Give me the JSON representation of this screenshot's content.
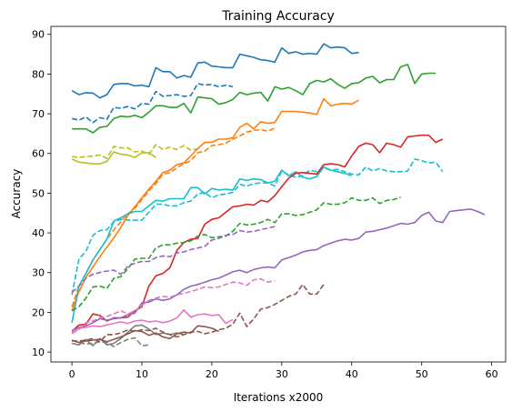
{
  "chart_data": {
    "type": "line",
    "title": "Training Accuracy",
    "xlabel": "Iterations x2000",
    "ylabel": "Accuracy",
    "xlim": [
      -3,
      62
    ],
    "ylim": [
      7.5,
      92
    ],
    "xticks": [
      0,
      10,
      20,
      30,
      40,
      50,
      60
    ],
    "yticks": [
      10,
      20,
      30,
      40,
      50,
      60,
      70,
      80,
      90
    ],
    "legend": "none",
    "series": [
      {
        "name": "blue solid",
        "color": "#1f77b4",
        "dash": "solid",
        "x0": 0,
        "values": [
          75.8,
          74.8,
          75.3,
          75.2,
          74.0,
          74.8,
          77.4,
          77.6,
          77.6,
          77.0,
          77.2,
          76.8,
          81.6,
          80.6,
          80.6,
          79.0,
          79.6,
          79.2,
          82.8,
          83.0,
          82.0,
          81.8,
          81.6,
          81.6,
          85.0,
          84.6,
          84.2,
          83.6,
          83.4,
          83.0,
          86.6,
          85.2,
          85.6,
          85.0,
          85.2,
          85.0,
          87.6,
          86.6,
          86.8,
          86.6,
          85.2,
          85.4
        ]
      },
      {
        "name": "blue dashed",
        "color": "#1f77b4",
        "dash": "dashed",
        "x0": 0,
        "values": [
          68.8,
          68.4,
          69.2,
          67.8,
          69.0,
          68.6,
          71.6,
          71.4,
          71.8,
          71.2,
          72.6,
          72.4,
          75.6,
          74.4,
          74.6,
          74.8,
          74.4,
          74.6,
          77.6,
          77.2,
          77.4,
          76.8,
          77.2,
          76.8
        ]
      },
      {
        "name": "green solid",
        "color": "#2ca02c",
        "dash": "solid",
        "x0": 0,
        "values": [
          66.2,
          66.2,
          66.2,
          65.2,
          66.6,
          66.8,
          68.8,
          69.4,
          69.2,
          69.6,
          69.0,
          70.4,
          72.0,
          72.0,
          71.6,
          71.6,
          72.6,
          70.2,
          74.2,
          74.0,
          73.8,
          72.4,
          72.8,
          73.6,
          75.4,
          74.8,
          75.2,
          75.4,
          73.2,
          76.8,
          76.2,
          76.6,
          75.8,
          74.8,
          77.6,
          78.4,
          78.0,
          78.8,
          77.4,
          76.4,
          77.6,
          77.8,
          79.0,
          79.4,
          77.8,
          78.6,
          78.6,
          81.8,
          82.4,
          77.6,
          80.0,
          80.2,
          80.2
        ]
      },
      {
        "name": "olive solid",
        "color": "#bcbd22",
        "dash": "solid",
        "x0": 0,
        "values": [
          58.6,
          57.8,
          57.6,
          57.4,
          57.4,
          58.0,
          60.4,
          59.8,
          59.6,
          59.0,
          60.2,
          60.2,
          59.0
        ]
      },
      {
        "name": "olive dashed",
        "color": "#bcbd22",
        "dash": "dashed",
        "x0": 0,
        "values": [
          59.2,
          59.0,
          59.2,
          59.4,
          59.6,
          58.8,
          61.8,
          61.4,
          61.4,
          60.4,
          60.6,
          59.8,
          62.2,
          61.0,
          61.6,
          61.0,
          62.0,
          60.8,
          61.2
        ]
      },
      {
        "name": "orange solid",
        "color": "#ff7f0e",
        "dash": "solid",
        "x0": 0,
        "values": [
          20.4,
          25.2,
          28.8,
          31.4,
          34.0,
          36.4,
          38.8,
          41.4,
          44.4,
          46.6,
          48.8,
          51.0,
          53.0,
          55.2,
          55.8,
          57.2,
          57.6,
          59.4,
          61.2,
          62.8,
          62.8,
          63.6,
          63.6,
          64.0,
          66.6,
          67.6,
          66.2,
          68.0,
          67.6,
          67.8,
          70.6,
          70.6,
          70.6,
          70.4,
          70.2,
          69.8,
          73.8,
          72.0,
          72.4,
          72.6,
          72.4,
          73.4
        ]
      },
      {
        "name": "orange dashed",
        "color": "#ff7f0e",
        "dash": "dashed",
        "x0": 0,
        "values": [
          21.4,
          26.6,
          29.8,
          33.2,
          35.8,
          38.4,
          40.8,
          42.8,
          44.8,
          46.2,
          48.4,
          50.6,
          52.4,
          54.8,
          55.2,
          56.4,
          57.4,
          58.2,
          60.2,
          60.6,
          62.0,
          62.2,
          62.6,
          63.6,
          64.4,
          65.4,
          65.8,
          66.0,
          65.6,
          66.4
        ]
      },
      {
        "name": "cyan solid",
        "color": "#17becf",
        "dash": "solid",
        "x0": 0,
        "values": [
          17.4,
          26.6,
          29.8,
          33.2,
          35.8,
          38.4,
          43.0,
          43.8,
          44.8,
          45.4,
          45.4,
          46.8,
          48.2,
          48.0,
          48.6,
          48.6,
          48.6,
          51.4,
          51.4,
          49.8,
          51.2,
          50.8,
          51.0,
          50.8,
          53.6,
          53.2,
          53.6,
          53.4,
          52.6,
          53.0,
          55.8,
          54.4,
          55.4,
          54.0,
          53.6,
          54.2,
          56.6,
          55.8,
          55.4,
          55.0,
          54.4
        ]
      },
      {
        "name": "cyan dashed",
        "color": "#17becf",
        "dash": "dashed",
        "x0": 0,
        "values": [
          24.4,
          33.4,
          35.4,
          39.4,
          40.6,
          40.8,
          42.8,
          43.4,
          43.2,
          43.2,
          43.2,
          45.2,
          47.2,
          47.2,
          46.8,
          46.8,
          47.6,
          48.0,
          49.8,
          50.2,
          48.8,
          49.6,
          49.8,
          50.2,
          52.2,
          51.8,
          52.4,
          52.6,
          52.6,
          51.8,
          55.6,
          54.6,
          54.0,
          54.4,
          55.8,
          55.4,
          56.4,
          55.8,
          56.0,
          55.4,
          54.8,
          54.6,
          56.6,
          55.6,
          56.2,
          55.6,
          55.4,
          55.4,
          55.6,
          58.6,
          58.2,
          57.6,
          57.8,
          55.4
        ]
      },
      {
        "name": "red solid",
        "color": "#d62728",
        "dash": "solid",
        "x0": 0,
        "values": [
          15.2,
          16.8,
          17.0,
          19.6,
          19.2,
          17.8,
          18.6,
          18.6,
          18.8,
          20.4,
          21.4,
          26.6,
          29.2,
          29.8,
          31.2,
          35.6,
          37.6,
          38.4,
          38.6,
          42.2,
          43.4,
          43.8,
          45.2,
          46.6,
          46.8,
          47.2,
          47.0,
          48.2,
          47.8,
          49.4,
          51.6,
          53.8,
          55.0,
          55.2,
          55.0,
          54.8,
          57.2,
          57.4,
          57.2,
          56.6,
          59.4,
          61.8,
          62.6,
          62.2,
          60.2,
          62.6,
          62.2,
          61.6,
          64.2,
          64.4,
          64.6,
          64.6,
          62.8,
          63.6
        ]
      },
      {
        "name": "green dashed",
        "color": "#2ca02c",
        "dash": "dashed",
        "x0": 0,
        "values": [
          20.4,
          21.4,
          23.6,
          26.4,
          26.6,
          26.0,
          28.6,
          29.0,
          31.0,
          33.4,
          33.6,
          33.6,
          36.2,
          37.0,
          37.0,
          37.4,
          37.6,
          38.0,
          39.2,
          39.6,
          38.8,
          39.0,
          39.2,
          40.4,
          42.4,
          42.0,
          42.2,
          42.6,
          43.4,
          42.6,
          44.8,
          44.8,
          44.4,
          44.6,
          45.2,
          45.8,
          47.6,
          47.2,
          47.2,
          47.6,
          48.8,
          48.2,
          48.2,
          48.8,
          47.4,
          48.2,
          48.4,
          49.0
        ]
      },
      {
        "name": "purple dashed",
        "color": "#9467bd",
        "dash": "dashed",
        "x0": 0,
        "values": [
          25.0,
          26.6,
          28.6,
          29.6,
          30.0,
          30.4,
          30.6,
          29.6,
          31.6,
          32.4,
          32.8,
          32.8,
          33.8,
          34.2,
          34.0,
          35.0,
          35.2,
          35.8,
          36.2,
          36.6,
          38.2,
          38.6,
          39.4,
          39.6,
          40.6,
          40.2,
          40.4,
          40.8,
          41.2,
          41.6
        ]
      },
      {
        "name": "purple solid",
        "color": "#9467bd",
        "dash": "solid",
        "x0": 0,
        "values": [
          15.4,
          16.2,
          16.6,
          17.4,
          18.4,
          18.0,
          18.4,
          18.6,
          19.4,
          19.8,
          22.4,
          22.6,
          23.4,
          23.0,
          23.4,
          24.4,
          25.8,
          26.6,
          27.0,
          27.6,
          28.2,
          28.6,
          29.4,
          30.2,
          30.6,
          30.0,
          30.8,
          31.2,
          31.4,
          31.2,
          33.2,
          33.8,
          34.4,
          35.2,
          35.6,
          35.8,
          36.8,
          37.4,
          38.0,
          38.4,
          38.2,
          38.6,
          40.2,
          40.4,
          40.8,
          41.2,
          41.8,
          42.4,
          42.2,
          42.6,
          44.4,
          45.2,
          43.0,
          42.6,
          45.4,
          45.6,
          45.8,
          46.0,
          45.4,
          44.6
        ]
      },
      {
        "name": "pink dashed",
        "color": "#e377c2",
        "dash": "dashed",
        "x0": 0,
        "values": [
          14.8,
          15.6,
          17.4,
          17.8,
          18.6,
          19.0,
          19.6,
          20.4,
          19.6,
          20.4,
          21.8,
          23.0,
          23.6,
          24.0,
          23.8,
          24.4,
          24.8,
          25.2,
          25.8,
          26.4,
          26.2,
          26.4,
          27.0,
          27.6,
          27.4,
          26.8,
          28.2,
          28.4,
          27.6,
          28.0
        ]
      },
      {
        "name": "pink solid",
        "color": "#e377c2",
        "dash": "solid",
        "x0": 0,
        "values": [
          14.6,
          16.0,
          16.2,
          16.6,
          16.4,
          16.8,
          17.2,
          17.6,
          17.2,
          17.8,
          18.0,
          17.6,
          17.8,
          17.4,
          17.8,
          18.6,
          20.6,
          18.8,
          19.4,
          19.6,
          19.2,
          19.4,
          17.2,
          18.2
        ]
      },
      {
        "name": "gray solid",
        "color": "#7f7f7f",
        "dash": "solid",
        "x0": 0,
        "values": [
          12.2,
          11.8,
          13.2,
          11.6,
          13.4,
          11.8,
          12.2,
          13.4,
          15.0,
          16.6,
          16.8,
          15.8,
          14.4,
          14.8,
          14.4,
          14.8,
          14.4
        ]
      },
      {
        "name": "gray dashed",
        "color": "#7f7f7f",
        "dash": "dashed",
        "x0": 0,
        "values": [
          13.0,
          12.4,
          12.0,
          12.2,
          12.6,
          12.4,
          11.4,
          12.4,
          13.2,
          13.6,
          11.6,
          11.8
        ]
      },
      {
        "name": "brown solid",
        "color": "#8c564b",
        "dash": "solid",
        "x0": 0,
        "values": [
          13.0,
          12.4,
          12.8,
          13.0,
          13.2,
          12.6,
          13.2,
          13.8,
          14.6,
          15.4,
          15.2,
          14.2,
          14.8,
          13.8,
          13.4,
          14.6,
          15.0,
          14.8,
          16.6,
          16.4,
          16.0,
          15.2
        ]
      },
      {
        "name": "brown dashed",
        "color": "#8c564b",
        "dash": "dashed",
        "x0": 0,
        "values": [
          12.8,
          12.8,
          13.0,
          13.4,
          12.6,
          14.4,
          14.4,
          14.8,
          15.6,
          15.2,
          15.6,
          15.4,
          16.0,
          15.0,
          14.4,
          13.8,
          14.4,
          15.0,
          15.2,
          14.6,
          15.0,
          15.6,
          16.0,
          17.0,
          19.8,
          16.4,
          18.4,
          20.8,
          21.2,
          22.0,
          23.0,
          24.0,
          24.6,
          27.0,
          24.6,
          24.6,
          27.0
        ]
      }
    ]
  }
}
